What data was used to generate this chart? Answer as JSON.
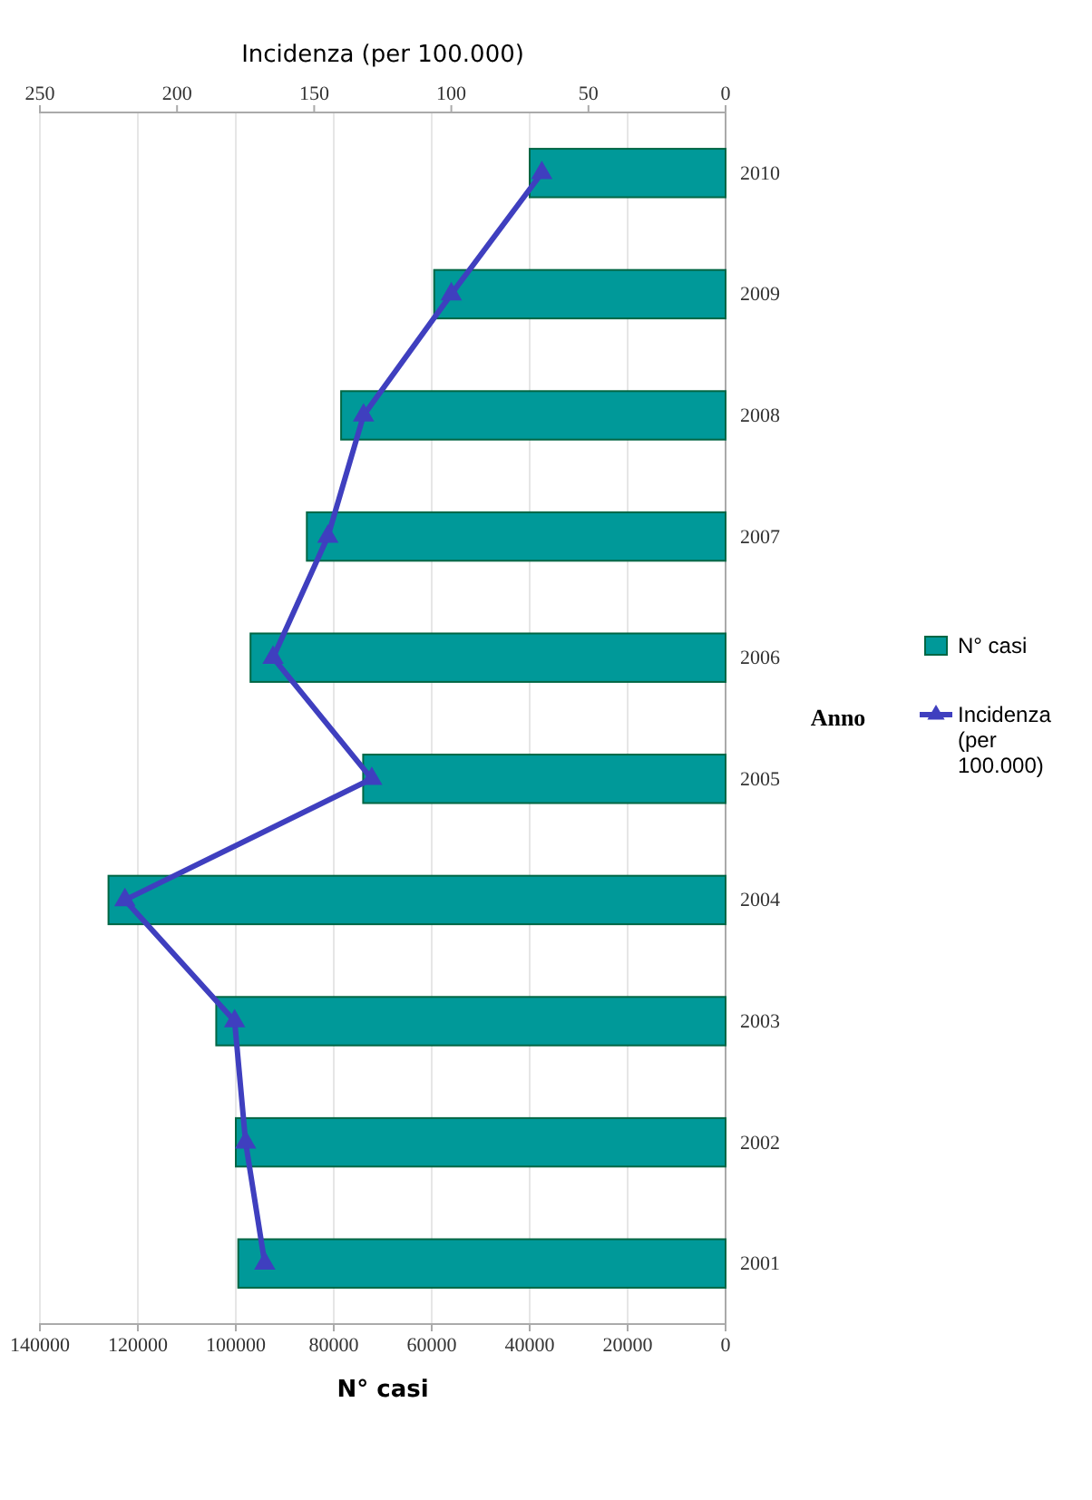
{
  "chart_data": {
    "type": "bar",
    "orientation": "horizontal",
    "xlabel": "N° casi",
    "x2label": "Incidenza (per 100.000)",
    "ylabel": "Anno",
    "categories": [
      "2010",
      "2009",
      "2008",
      "2007",
      "2006",
      "2005",
      "2004",
      "2003",
      "2002",
      "2001"
    ],
    "series": [
      {
        "name": "N° casi",
        "color": "#009999",
        "values": [
          40000,
          59500,
          78500,
          85500,
          97000,
          74000,
          126000,
          104000,
          100000,
          99500
        ]
      },
      {
        "name": "Incidenza (per 100.000)",
        "type": "line",
        "axis": "x2",
        "color": "#3f3fbf",
        "marker": "triangle",
        "values": [
          67,
          100,
          132,
          145,
          165,
          129,
          219,
          179,
          175,
          168
        ]
      }
    ],
    "xlim": [
      140000,
      0
    ],
    "xticks": [
      140000,
      120000,
      100000,
      80000,
      60000,
      40000,
      20000,
      0
    ],
    "x2lim": [
      250,
      0
    ],
    "x2ticks": [
      250,
      200,
      150,
      100,
      50,
      0
    ],
    "grid": true,
    "legend": "right"
  }
}
